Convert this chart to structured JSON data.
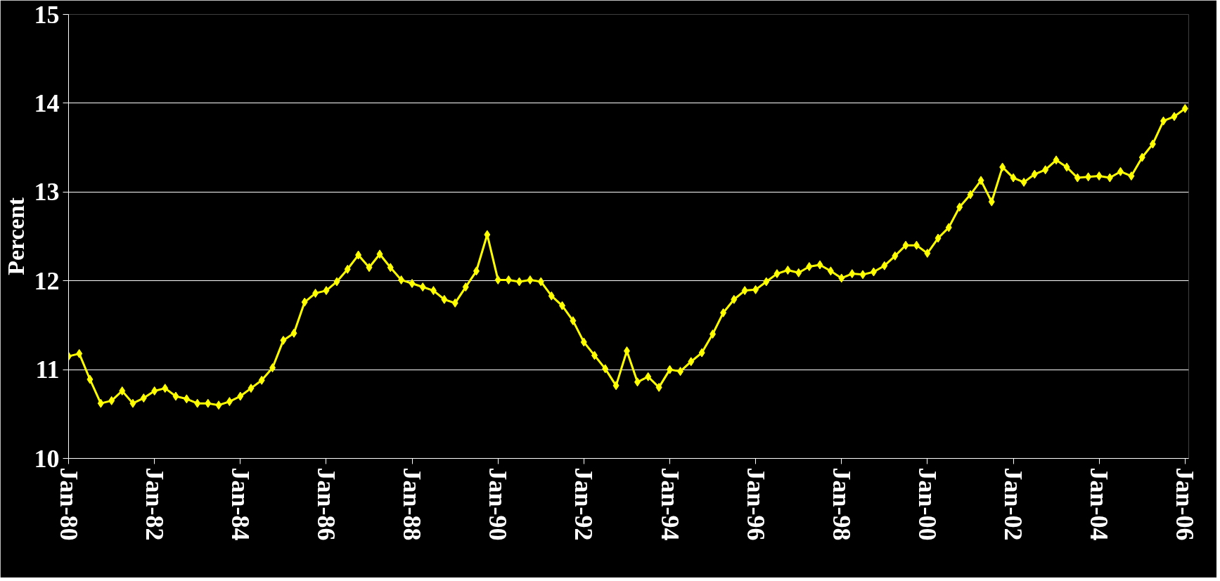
{
  "chart_data": {
    "type": "line",
    "ylabel": "Percent",
    "x": [
      "1980-01",
      "1980-04",
      "1980-07",
      "1980-10",
      "1981-01",
      "1981-04",
      "1981-07",
      "1981-10",
      "1982-01",
      "1982-04",
      "1982-07",
      "1982-10",
      "1983-01",
      "1983-04",
      "1983-07",
      "1983-10",
      "1984-01",
      "1984-04",
      "1984-07",
      "1984-10",
      "1985-01",
      "1985-04",
      "1985-07",
      "1985-10",
      "1986-01",
      "1986-04",
      "1986-07",
      "1986-10",
      "1987-01",
      "1987-04",
      "1987-07",
      "1987-10",
      "1988-01",
      "1988-04",
      "1988-07",
      "1988-10",
      "1989-01",
      "1989-04",
      "1989-07",
      "1989-10",
      "1990-01",
      "1990-04",
      "1990-07",
      "1990-10",
      "1991-01",
      "1991-04",
      "1991-07",
      "1991-10",
      "1992-01",
      "1992-04",
      "1992-07",
      "1992-10",
      "1993-01",
      "1993-04",
      "1993-07",
      "1993-10",
      "1994-01",
      "1994-04",
      "1994-07",
      "1994-10",
      "1995-01",
      "1995-04",
      "1995-07",
      "1995-10",
      "1996-01",
      "1996-04",
      "1996-07",
      "1996-10",
      "1997-01",
      "1997-04",
      "1997-07",
      "1997-10",
      "1998-01",
      "1998-04",
      "1998-07",
      "1998-10",
      "1999-01",
      "1999-04",
      "1999-07",
      "1999-10",
      "2000-01",
      "2000-04",
      "2000-07",
      "2000-10",
      "2001-01",
      "2001-04",
      "2001-07",
      "2001-10",
      "2002-01",
      "2002-04",
      "2002-07",
      "2002-10",
      "2003-01",
      "2003-04",
      "2003-07",
      "2003-10",
      "2004-01",
      "2004-04",
      "2004-07",
      "2004-10",
      "2005-01",
      "2005-04",
      "2005-07",
      "2005-10",
      "2006-01"
    ],
    "series": [
      {
        "color": "#ffff00",
        "values": [
          11.15,
          11.18,
          10.89,
          10.62,
          10.65,
          10.76,
          10.62,
          10.68,
          10.76,
          10.79,
          10.7,
          10.67,
          10.62,
          10.62,
          10.6,
          10.64,
          10.7,
          10.79,
          10.88,
          11.02,
          11.33,
          11.41,
          11.76,
          11.86,
          11.89,
          11.99,
          12.13,
          12.29,
          12.15,
          12.3,
          12.15,
          12.01,
          11.97,
          11.93,
          11.89,
          11.79,
          11.75,
          11.93,
          12.11,
          12.52,
          12.01,
          12.01,
          11.99,
          12.01,
          11.99,
          11.83,
          11.72,
          11.55,
          11.31,
          11.16,
          11.01,
          10.82,
          11.21,
          10.86,
          10.92,
          10.8,
          11.0,
          10.98,
          11.09,
          11.19,
          11.4,
          11.64,
          11.79,
          11.89,
          11.9,
          11.99,
          12.08,
          12.12,
          12.09,
          12.16,
          12.18,
          12.11,
          12.03,
          12.08,
          12.07,
          12.1,
          12.17,
          12.28,
          12.4,
          12.4,
          12.31,
          12.48,
          12.6,
          12.83,
          12.97,
          13.13,
          12.89,
          13.28,
          13.16,
          13.11,
          13.2,
          13.25,
          13.36,
          13.28,
          13.16,
          13.17,
          13.18,
          13.16,
          13.23,
          13.18,
          13.39,
          13.54,
          13.8,
          13.85,
          13.94
        ]
      }
    ],
    "xlim": [
      "1980-01",
      "2006-02"
    ],
    "xticks": [
      {
        "value": "1980-01",
        "label": "Jan-80"
      },
      {
        "value": "1982-01",
        "label": "Jan-82"
      },
      {
        "value": "1984-01",
        "label": "Jan-84"
      },
      {
        "value": "1986-01",
        "label": "Jan-86"
      },
      {
        "value": "1988-01",
        "label": "Jan-88"
      },
      {
        "value": "1990-01",
        "label": "Jan-90"
      },
      {
        "value": "1992-01",
        "label": "Jan-92"
      },
      {
        "value": "1994-01",
        "label": "Jan-94"
      },
      {
        "value": "1996-01",
        "label": "Jan-96"
      },
      {
        "value": "1998-01",
        "label": "Jan-98"
      },
      {
        "value": "2000-01",
        "label": "Jan-00"
      },
      {
        "value": "2002-01",
        "label": "Jan-02"
      },
      {
        "value": "2004-01",
        "label": "Jan-04"
      },
      {
        "value": "2006-01",
        "label": "Jan-06"
      }
    ],
    "ylim": [
      10,
      15
    ],
    "yticks": [
      10,
      11,
      12,
      13,
      14,
      15
    ],
    "grid": "y",
    "marker": "diamond",
    "line_style": "solid"
  }
}
